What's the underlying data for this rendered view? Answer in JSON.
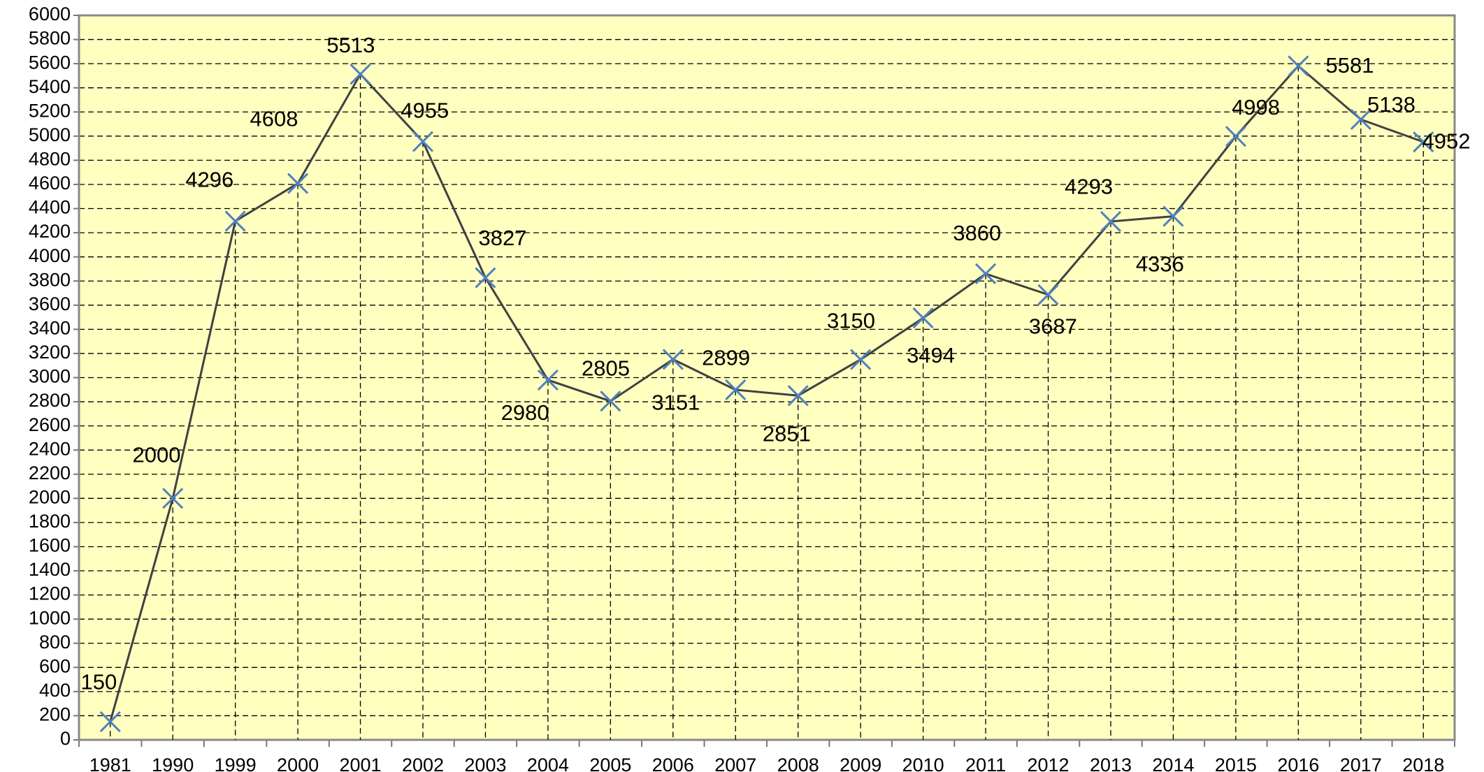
{
  "chart_data": {
    "type": "line",
    "categories": [
      "1981",
      "1990",
      "1999",
      "2000",
      "2001",
      "2002",
      "2003",
      "2004",
      "2005",
      "2006",
      "2007",
      "2008",
      "2009",
      "2010",
      "2011",
      "2012",
      "2013",
      "2014",
      "2015",
      "2016",
      "2017",
      "2018"
    ],
    "values": [
      150,
      2000,
      4296,
      4608,
      5513,
      4955,
      3827,
      2980,
      2805,
      3151,
      2899,
      2851,
      3150,
      3494,
      3860,
      3687,
      4293,
      4336,
      4998,
      5581,
      5138,
      4952
    ],
    "color": "#404040",
    "marker_color": "#4f81bd",
    "background": "#ffffc0",
    "ylim": [
      0,
      6000
    ],
    "yticks": [
      0,
      200,
      400,
      600,
      800,
      1000,
      1200,
      1400,
      1600,
      1800,
      2000,
      2200,
      2400,
      2600,
      2800,
      3000,
      3200,
      3400,
      3600,
      3800,
      4000,
      4200,
      4400,
      4600,
      4800,
      5000,
      5200,
      5400,
      5600,
      5800,
      6000
    ],
    "grid": true
  }
}
